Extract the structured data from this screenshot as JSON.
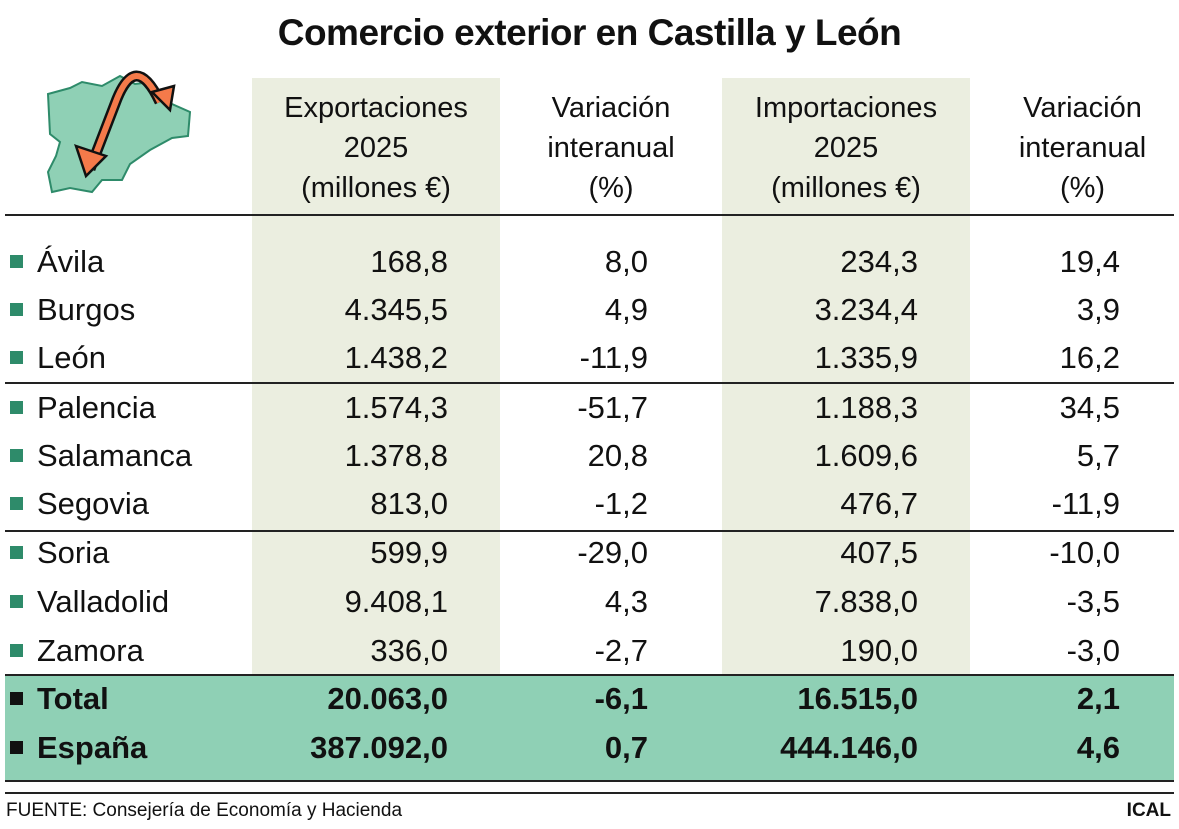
{
  "title": "Comercio exterior en Castilla y León",
  "colors": {
    "column_shade": "#ebeee0",
    "total_band": "#8fd0b5",
    "bullet": "#2e8b6a",
    "arrow": "#f47a4a",
    "map": "#8fd0b5"
  },
  "icon": "castilla-y-leon-map-with-trade-arrows-icon",
  "headers": [
    [
      "Exportaciones",
      "2025",
      "(millones €)"
    ],
    [
      "Variación",
      "interanual",
      "(%)"
    ],
    [
      "Importaciones",
      "2025",
      "(millones €)"
    ],
    [
      "Variación",
      "interanual",
      "(%)"
    ]
  ],
  "rows": [
    [
      "Ávila",
      "168,8",
      "8,0",
      "234,3",
      "19,4"
    ],
    [
      "Burgos",
      "4.345,5",
      "4,9",
      "3.234,4",
      "3,9"
    ],
    [
      "León",
      "1.438,2",
      "-11,9",
      "1.335,9",
      "16,2"
    ],
    [
      "Palencia",
      "1.574,3",
      "-51,7",
      "1.188,3",
      "34,5"
    ],
    [
      "Salamanca",
      "1.378,8",
      "20,8",
      "1.609,6",
      "5,7"
    ],
    [
      "Segovia",
      "813,0",
      "-1,2",
      "476,7",
      "-11,9"
    ],
    [
      "Soria",
      "599,9",
      "-29,0",
      "407,5",
      "-10,0"
    ],
    [
      "Valladolid",
      "9.408,1",
      "4,3",
      "7.838,0",
      "-3,5"
    ],
    [
      "Zamora",
      "336,0",
      "-2,7",
      "190,0",
      "-3,0"
    ]
  ],
  "totals": [
    [
      "Total",
      "20.063,0",
      "-6,1",
      "16.515,0",
      "2,1"
    ],
    [
      "España",
      "387.092,0",
      "0,7",
      "444.146,0",
      "4,6"
    ]
  ],
  "footer": {
    "source": "FUENTE: Consejería de Economía y Hacienda",
    "brand": "ICAL"
  },
  "chart_data": {
    "type": "table",
    "title": "Comercio exterior en Castilla y León",
    "columns": [
      "Exportaciones 2025 (millones €)",
      "Variación interanual (%)",
      "Importaciones 2025 (millones €)",
      "Variación interanual (%)"
    ],
    "rows": [
      {
        "name": "Ávila",
        "values": [
          168.8,
          8.0,
          234.3,
          19.4
        ]
      },
      {
        "name": "Burgos",
        "values": [
          4345.5,
          4.9,
          3234.4,
          3.9
        ]
      },
      {
        "name": "León",
        "values": [
          1438.2,
          -11.9,
          1335.9,
          16.2
        ]
      },
      {
        "name": "Palencia",
        "values": [
          1574.3,
          -51.7,
          1188.3,
          34.5
        ]
      },
      {
        "name": "Salamanca",
        "values": [
          1378.8,
          20.8,
          1609.6,
          5.7
        ]
      },
      {
        "name": "Segovia",
        "values": [
          813.0,
          -1.2,
          476.7,
          -11.9
        ]
      },
      {
        "name": "Soria",
        "values": [
          599.9,
          -29.0,
          407.5,
          -10.0
        ]
      },
      {
        "name": "Valladolid",
        "values": [
          9408.1,
          4.3,
          7838.0,
          -3.5
        ]
      },
      {
        "name": "Zamora",
        "values": [
          336.0,
          -2.7,
          190.0,
          -3.0
        ]
      },
      {
        "name": "Total",
        "values": [
          20063.0,
          -6.1,
          16515.0,
          2.1
        ]
      },
      {
        "name": "España",
        "values": [
          387092.0,
          0.7,
          444146.0,
          4.6
        ]
      }
    ]
  }
}
